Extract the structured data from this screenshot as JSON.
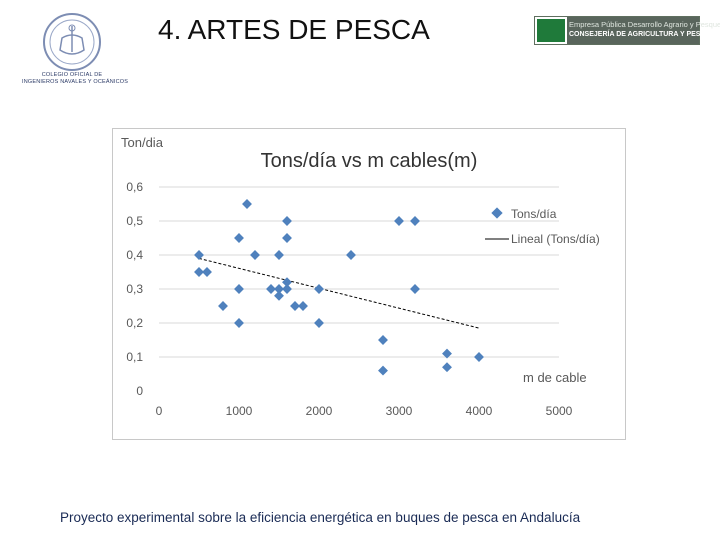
{
  "slide": {
    "title": "4. ARTES DE PESCA",
    "footer": "Proyecto experimental sobre la eficiencia energética en buques de pesca en Andalucía"
  },
  "logos": {
    "left_caption_1": "COLEGIO OFICIAL DE",
    "left_caption_2": "INGENIEROS NAVALES Y OCEÁNICOS",
    "right_line_1": "Empresa Pública Desarrollo Agrario y Pesquero",
    "right_line_2": "CONSEJERÍA DE AGRICULTURA Y PESCA"
  },
  "colors": {
    "marker": "#4f81bd",
    "trendline": "#000000",
    "gridline": "#d9d9d9",
    "axis_text": "#595959"
  },
  "chart_data": {
    "type": "scatter",
    "title": "Tons/día vs m cables(m)",
    "ylabel": "Ton/dia",
    "xlabel": "m de cable",
    "xlim": [
      0,
      5000
    ],
    "ylim": [
      0,
      0.6
    ],
    "x_ticks": [
      "0",
      "1000",
      "2000",
      "3000",
      "4000",
      "5000"
    ],
    "y_ticks": [
      "0",
      "0,1",
      "0,2",
      "0,3",
      "0,4",
      "0,5",
      "0,6"
    ],
    "grid": "horizontal",
    "legend_position": "right",
    "series": [
      {
        "name": "Tons/día",
        "points": [
          [
            500,
            0.4
          ],
          [
            500,
            0.35
          ],
          [
            600,
            0.35
          ],
          [
            800,
            0.25
          ],
          [
            1000,
            0.45
          ],
          [
            1000,
            0.3
          ],
          [
            1000,
            0.2
          ],
          [
            1100,
            0.55
          ],
          [
            1200,
            0.4
          ],
          [
            1400,
            0.3
          ],
          [
            1500,
            0.4
          ],
          [
            1500,
            0.3
          ],
          [
            1500,
            0.28
          ],
          [
            1600,
            0.5
          ],
          [
            1600,
            0.45
          ],
          [
            1600,
            0.32
          ],
          [
            1600,
            0.3
          ],
          [
            1700,
            0.25
          ],
          [
            1800,
            0.25
          ],
          [
            2000,
            0.3
          ],
          [
            2000,
            0.2
          ],
          [
            2400,
            0.4
          ],
          [
            2800,
            0.15
          ],
          [
            2800,
            0.06
          ],
          [
            3000,
            0.5
          ],
          [
            3200,
            0.5
          ],
          [
            3200,
            0.3
          ],
          [
            3600,
            0.11
          ],
          [
            3600,
            0.07
          ],
          [
            4000,
            0.1
          ]
        ]
      }
    ],
    "trendline": {
      "name": "Lineal (Tons/día)",
      "from": [
        500,
        0.39
      ],
      "to": [
        4000,
        0.185
      ]
    }
  }
}
